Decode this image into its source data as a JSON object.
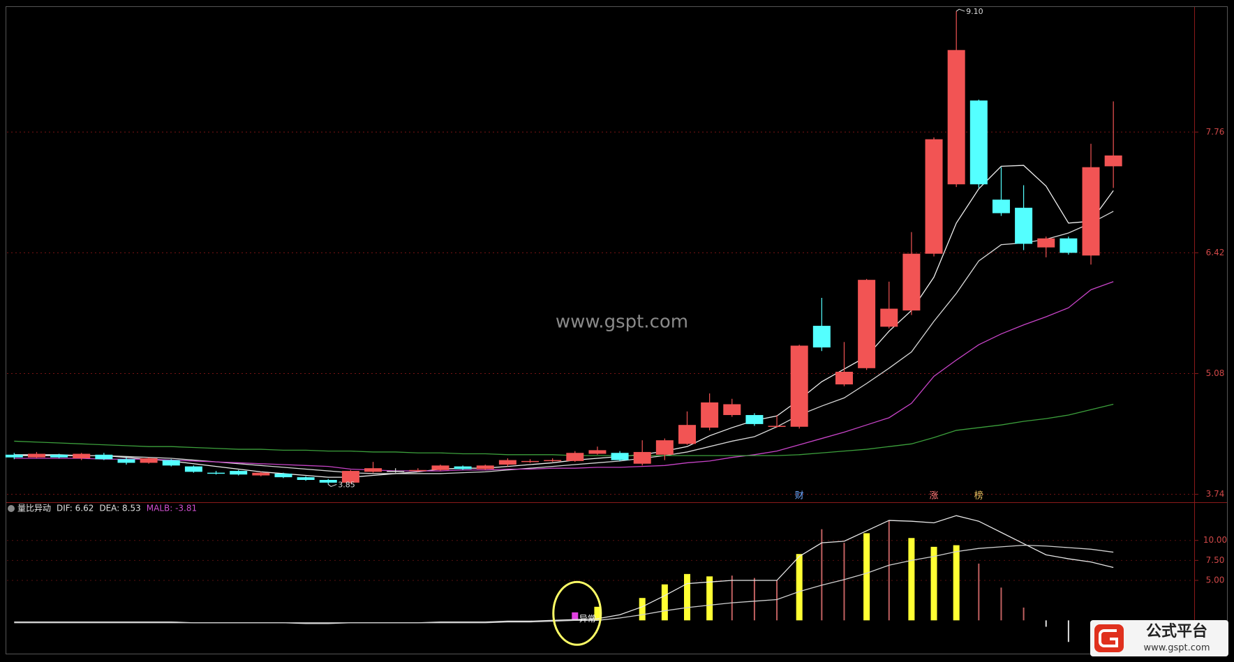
{
  "chart_data": [
    {
      "type": "candlestick",
      "open": [
        4.18,
        4.15,
        4.18,
        4.14,
        4.18,
        4.13,
        4.09,
        4.12,
        4.05,
        3.98,
        4.0,
        3.95,
        3.97,
        3.93,
        3.9,
        3.87,
        3.99,
        4.0,
        4.0,
        4.01,
        4.05,
        4.02,
        4.07,
        4.1,
        4.11,
        4.11,
        4.19,
        4.2,
        4.08,
        4.18,
        4.3,
        4.48,
        4.62,
        4.62,
        4.49,
        4.49,
        5.61,
        4.96,
        5.14,
        5.6,
        5.78,
        6.41,
        7.18,
        8.11,
        7.01,
        6.92,
        6.48,
        6.58,
        6.39,
        7.38
      ],
      "high": [
        4.2,
        4.21,
        4.19,
        4.2,
        4.2,
        4.15,
        4.15,
        4.13,
        4.06,
        4.0,
        4.01,
        3.99,
        3.98,
        3.94,
        3.91,
        4.01,
        4.1,
        4.03,
        4.03,
        4.07,
        4.06,
        4.07,
        4.14,
        4.13,
        4.14,
        4.22,
        4.27,
        4.22,
        4.34,
        4.36,
        4.66,
        4.86,
        4.8,
        4.64,
        4.62,
        5.4,
        5.92,
        5.43,
        6.13,
        6.1,
        6.65,
        7.7,
        9.1,
        8.12,
        7.37,
        7.17,
        6.6,
        6.6,
        7.63,
        8.1
      ],
      "low": [
        4.13,
        4.14,
        4.14,
        4.12,
        4.12,
        4.07,
        4.08,
        4.05,
        3.98,
        3.96,
        3.95,
        3.94,
        3.92,
        3.89,
        3.85,
        3.86,
        3.98,
        3.98,
        3.99,
        4.0,
        4.01,
        4.01,
        4.05,
        4.09,
        4.1,
        4.1,
        4.18,
        4.11,
        4.06,
        4.12,
        4.29,
        4.45,
        4.6,
        4.5,
        4.48,
        4.47,
        5.33,
        4.94,
        5.12,
        5.58,
        5.73,
        6.38,
        7.15,
        7.14,
        6.83,
        6.45,
        6.37,
        6.4,
        6.29,
        7.14
      ],
      "close": [
        4.15,
        4.19,
        4.15,
        4.19,
        4.13,
        4.09,
        4.14,
        4.06,
        3.99,
        3.97,
        3.96,
        3.98,
        3.93,
        3.9,
        3.87,
        4.0,
        4.03,
        4.0,
        4.01,
        4.06,
        4.02,
        4.06,
        4.12,
        4.11,
        4.12,
        4.2,
        4.23,
        4.12,
        4.21,
        4.34,
        4.51,
        4.76,
        4.74,
        4.52,
        4.5,
        5.39,
        5.37,
        5.1,
        6.12,
        5.8,
        6.41,
        7.68,
        8.67,
        7.18,
        6.86,
        6.52,
        6.58,
        6.42,
        7.37,
        7.5
      ],
      "up_color": "#f25454",
      "down_color": "#54ffff",
      "flat_color": "#dddddd",
      "lines": [
        {
          "color": "#f0f0f0",
          "values": [
            4.17,
            4.17,
            4.17,
            4.17,
            4.17,
            4.15,
            4.13,
            4.11,
            4.08,
            4.05,
            4.02,
            3.99,
            3.97,
            3.95,
            3.93,
            3.93,
            3.95,
            3.97,
            3.99,
            4.02,
            4.03,
            4.03,
            4.05,
            4.07,
            4.09,
            4.12,
            4.14,
            4.16,
            4.18,
            4.22,
            4.27,
            4.39,
            4.48,
            4.56,
            4.61,
            4.79,
            4.99,
            5.13,
            5.27,
            5.55,
            5.78,
            6.15,
            6.75,
            7.13,
            7.38,
            7.39,
            7.16,
            6.75,
            6.77,
            7.11
          ]
        },
        {
          "color": "#d8d8d8",
          "values": [
            4.18,
            4.18,
            4.18,
            4.17,
            4.17,
            4.16,
            4.15,
            4.14,
            4.12,
            4.1,
            4.08,
            4.06,
            4.04,
            4.02,
            4.0,
            3.98,
            3.97,
            3.97,
            3.97,
            3.97,
            3.98,
            3.99,
            4.01,
            4.03,
            4.05,
            4.07,
            4.09,
            4.11,
            4.14,
            4.17,
            4.21,
            4.27,
            4.33,
            4.38,
            4.49,
            4.62,
            4.72,
            4.81,
            4.97,
            5.14,
            5.32,
            5.66,
            5.97,
            6.33,
            6.51,
            6.53,
            6.57,
            6.64,
            6.75,
            6.88
          ]
        },
        {
          "color": "#c844c8",
          "values": [
            4.14,
            4.14,
            4.14,
            4.14,
            4.13,
            4.13,
            4.13,
            4.12,
            4.11,
            4.1,
            4.09,
            4.08,
            4.07,
            4.06,
            4.05,
            4.02,
            4.01,
            4.0,
            4.0,
            4.0,
            4.01,
            4.01,
            4.02,
            4.02,
            4.03,
            4.03,
            4.04,
            4.04,
            4.05,
            4.06,
            4.09,
            4.11,
            4.15,
            4.18,
            4.22,
            4.29,
            4.36,
            4.43,
            4.51,
            4.59,
            4.75,
            5.05,
            5.23,
            5.4,
            5.52,
            5.62,
            5.71,
            5.81,
            6.01,
            6.1
          ]
        },
        {
          "color": "#3ca03c",
          "values": [
            4.33,
            4.32,
            4.31,
            4.3,
            4.29,
            4.28,
            4.27,
            4.27,
            4.26,
            4.25,
            4.24,
            4.24,
            4.23,
            4.23,
            4.22,
            4.22,
            4.21,
            4.21,
            4.2,
            4.2,
            4.19,
            4.19,
            4.18,
            4.18,
            4.18,
            4.17,
            4.17,
            4.17,
            4.17,
            4.17,
            4.17,
            4.17,
            4.17,
            4.17,
            4.17,
            4.18,
            4.2,
            4.22,
            4.24,
            4.27,
            4.3,
            4.37,
            4.45,
            4.48,
            4.51,
            4.55,
            4.58,
            4.62,
            4.68,
            4.74
          ]
        }
      ],
      "ylim": [
        3.66,
        9.14
      ],
      "yticks": [
        3.74,
        5.08,
        6.42,
        7.76
      ],
      "grid": true,
      "high_label": {
        "value": 9.1,
        "label": "9.10"
      },
      "low_label": {
        "value": 3.85,
        "label": "3.85"
      },
      "events": [
        null,
        null,
        null,
        null,
        null,
        null,
        null,
        null,
        null,
        null,
        null,
        null,
        null,
        null,
        null,
        null,
        null,
        null,
        null,
        null,
        null,
        null,
        null,
        null,
        null,
        null,
        null,
        null,
        null,
        null,
        null,
        null,
        null,
        null,
        null,
        {
          "text": "财",
          "color": "#6fa8ff"
        },
        null,
        null,
        null,
        null,
        null,
        {
          "text": "涨",
          "color": "#ff7a7a"
        },
        null,
        {
          "text": "榜",
          "color": "#e8c060"
        },
        null,
        null,
        null,
        null,
        null,
        null
      ],
      "watermark": "www.gspt.com"
    },
    {
      "type": "indicator",
      "title": "量比异动",
      "readouts": [
        {
          "text": "DIF: 6.62",
          "color": "#e0e0e0"
        },
        {
          "text": "DEA: 8.53",
          "color": "#e0e0e0"
        },
        {
          "text": "MALB: -3.81",
          "color": "#d050d0"
        }
      ],
      "bar_series": [
        {
          "color": "#ffff33",
          "width": 9,
          "values": [
            null,
            null,
            null,
            null,
            null,
            null,
            null,
            null,
            null,
            null,
            null,
            null,
            null,
            null,
            null,
            null,
            null,
            null,
            null,
            null,
            null,
            null,
            null,
            null,
            null,
            null,
            1.7,
            null,
            2.8,
            4.5,
            5.8,
            5.5,
            null,
            null,
            null,
            8.3,
            null,
            null,
            10.9,
            null,
            10.3,
            9.2,
            9.4,
            null,
            null,
            null,
            null,
            null,
            null,
            null
          ]
        },
        {
          "color": "#c06060",
          "width": 2,
          "values": [
            null,
            null,
            null,
            null,
            null,
            null,
            null,
            null,
            null,
            null,
            null,
            null,
            null,
            null,
            null,
            null,
            null,
            null,
            null,
            null,
            null,
            null,
            null,
            null,
            null,
            null,
            null,
            null,
            null,
            null,
            null,
            null,
            5.6,
            5.3,
            5.0,
            null,
            11.4,
            9.7,
            null,
            12.5,
            null,
            null,
            null,
            7.1,
            4.1,
            1.6,
            null,
            null,
            null,
            null
          ]
        },
        {
          "color": "#e0e0e0",
          "width": 2,
          "values": [
            null,
            null,
            null,
            null,
            null,
            null,
            null,
            null,
            null,
            null,
            null,
            null,
            null,
            null,
            null,
            null,
            null,
            null,
            null,
            null,
            null,
            null,
            null,
            null,
            null,
            null,
            null,
            null,
            null,
            null,
            null,
            null,
            null,
            null,
            null,
            null,
            null,
            null,
            null,
            null,
            null,
            null,
            null,
            null,
            null,
            null,
            -0.8,
            -2.7,
            null,
            null
          ]
        },
        {
          "color": "#e040e0",
          "width": 9,
          "values": [
            null,
            null,
            null,
            null,
            null,
            null,
            null,
            null,
            null,
            null,
            null,
            null,
            null,
            null,
            null,
            null,
            null,
            null,
            null,
            null,
            null,
            null,
            null,
            null,
            null,
            1.0,
            null,
            null,
            null,
            null,
            null,
            null,
            null,
            null,
            null,
            null,
            null,
            null,
            null,
            null,
            null,
            null,
            null,
            null,
            null,
            null,
            null,
            null,
            null,
            null
          ]
        }
      ],
      "lines": [
        {
          "color": "#e8e8e8",
          "values": [
            -0.2,
            -0.2,
            -0.2,
            -0.2,
            -0.2,
            -0.2,
            -0.2,
            -0.2,
            -0.3,
            -0.3,
            -0.3,
            -0.3,
            -0.3,
            -0.4,
            -0.4,
            -0.3,
            -0.3,
            -0.3,
            -0.3,
            -0.2,
            -0.2,
            -0.2,
            -0.1,
            -0.1,
            0.0,
            0.1,
            0.2,
            0.7,
            1.7,
            3.1,
            4.6,
            4.8,
            5.0,
            5.0,
            5.0,
            8.0,
            9.7,
            9.9,
            11.2,
            12.5,
            12.4,
            12.2,
            13.1,
            12.4,
            11.0,
            9.6,
            8.2,
            7.7,
            7.3,
            6.62
          ]
        },
        {
          "color": "#d0d0d0",
          "values": [
            -0.3,
            -0.3,
            -0.3,
            -0.3,
            -0.3,
            -0.3,
            -0.3,
            -0.3,
            -0.3,
            -0.3,
            -0.3,
            -0.3,
            -0.3,
            -0.3,
            -0.3,
            -0.3,
            -0.3,
            -0.3,
            -0.3,
            -0.3,
            -0.3,
            -0.3,
            -0.2,
            -0.2,
            -0.1,
            0.0,
            0.0,
            0.3,
            0.7,
            1.2,
            1.6,
            1.9,
            2.2,
            2.4,
            2.6,
            3.6,
            4.4,
            5.1,
            5.9,
            6.9,
            7.5,
            8.0,
            8.6,
            9.0,
            9.2,
            9.4,
            9.3,
            9.1,
            8.9,
            8.53
          ]
        }
      ],
      "signal_labels": [
        null,
        null,
        null,
        null,
        null,
        null,
        null,
        null,
        null,
        null,
        null,
        null,
        null,
        null,
        null,
        null,
        null,
        null,
        null,
        null,
        null,
        null,
        null,
        null,
        null,
        "异常",
        null,
        null,
        null,
        null,
        null,
        null,
        null,
        null,
        null,
        null,
        null,
        null,
        null,
        null,
        null,
        null,
        null,
        null,
        null,
        null,
        null,
        null,
        null,
        null
      ],
      "ylim": [
        -3.9,
        14.6
      ],
      "yticks": [
        {
          "value": 5,
          "label": "5.00"
        },
        {
          "value": 7.5,
          "label": "7.50"
        },
        {
          "value": 10,
          "label": "10.00"
        }
      ],
      "logo": {
        "title": "公式平台",
        "url": "www.gspt.com"
      }
    }
  ]
}
